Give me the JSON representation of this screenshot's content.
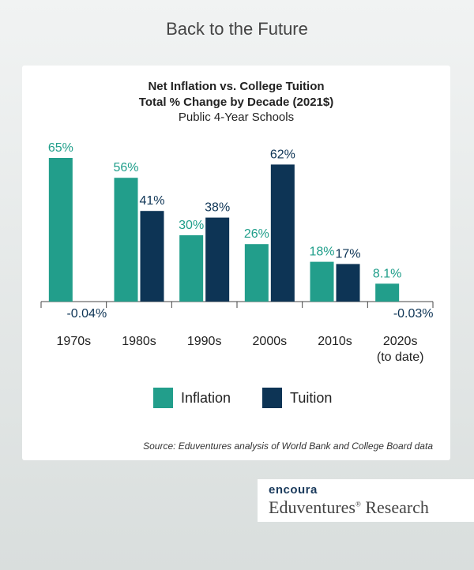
{
  "page_title": "Back to the Future",
  "colors": {
    "inflation": "#229e8b",
    "tuition": "#0d3455",
    "inflation_label": "#1f9e8a",
    "tuition_label": "#0d3455"
  },
  "chart_data": {
    "type": "bar",
    "title": "Net Inflation vs. College Tuition",
    "title_line2": "Total % Change by Decade (2021$)",
    "subtitle": "Public 4-Year Schools",
    "categories": [
      "1970s",
      "1980s",
      "1990s",
      "2000s",
      "2010s",
      "2020s\n(to date)"
    ],
    "series": [
      {
        "name": "Inflation",
        "values": [
          65,
          56,
          30,
          26,
          18,
          8.1
        ],
        "labels": [
          "65%",
          "56%",
          "30%",
          "26%",
          "18%",
          "8.1%"
        ]
      },
      {
        "name": "Tuition",
        "values": [
          -0.04,
          41,
          38,
          62,
          17,
          -0.03
        ],
        "labels": [
          "-0.04%",
          "41%",
          "38%",
          "62%",
          "17%",
          "-0.03%"
        ]
      }
    ],
    "ylim": [
      0,
      70
    ],
    "grid": false,
    "legend": "bottom-center"
  },
  "source": "Source: Eduventures analysis of World Bank and College Board data",
  "logo": {
    "top": "encoura",
    "bottom": "Eduventures Research",
    "mark": "®"
  }
}
